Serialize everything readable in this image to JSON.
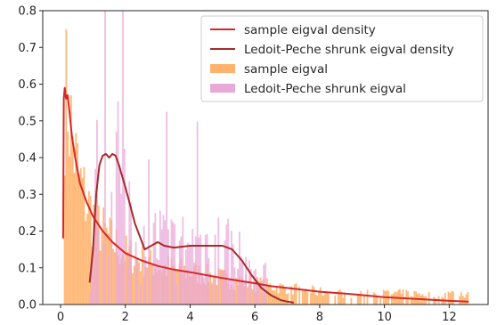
{
  "chart_data": {
    "type": "histogram+line",
    "title": "",
    "xlabel": "",
    "ylabel": "",
    "xlim": [
      -0.55,
      13.2
    ],
    "ylim": [
      0,
      0.8
    ],
    "x_ticks": [
      0,
      2,
      4,
      6,
      8,
      10,
      12
    ],
    "y_ticks": [
      0.0,
      0.1,
      0.2,
      0.3,
      0.4,
      0.5,
      0.6,
      0.7,
      0.8
    ],
    "legend_position": "top-right",
    "grid": false,
    "series": [
      {
        "name": "sample eigval density",
        "kind": "line",
        "color": "#d62728",
        "x": [
          0.08,
          0.1,
          0.13,
          0.17,
          0.22,
          0.28,
          0.35,
          0.45,
          0.6,
          0.8,
          1.0,
          1.3,
          1.6,
          2.0,
          2.5,
          3.0,
          3.5,
          4.0,
          4.5,
          5.0,
          5.5,
          6.0,
          6.5,
          7.0,
          8.0,
          9.0,
          10.0,
          11.0,
          12.0,
          12.6
        ],
        "y": [
          0.18,
          0.56,
          0.59,
          0.56,
          0.57,
          0.52,
          0.46,
          0.4,
          0.33,
          0.28,
          0.24,
          0.2,
          0.17,
          0.14,
          0.12,
          0.105,
          0.095,
          0.088,
          0.08,
          0.072,
          0.065,
          0.058,
          0.05,
          0.045,
          0.035,
          0.028,
          0.02,
          0.015,
          0.01,
          0.008
        ]
      },
      {
        "name": "Ledoit-Peche shrunk eigval density",
        "kind": "line",
        "color": "#a52a2a",
        "x": [
          0.9,
          1.0,
          1.1,
          1.2,
          1.3,
          1.4,
          1.5,
          1.6,
          1.7,
          1.8,
          2.0,
          2.3,
          2.6,
          2.8,
          3.0,
          3.2,
          3.5,
          4.0,
          4.5,
          5.0,
          5.3,
          5.6,
          5.9,
          6.2,
          6.5,
          6.8,
          7.0,
          7.2
        ],
        "y": [
          0.06,
          0.15,
          0.3,
          0.38,
          0.405,
          0.41,
          0.4,
          0.41,
          0.405,
          0.38,
          0.32,
          0.22,
          0.15,
          0.16,
          0.17,
          0.16,
          0.155,
          0.16,
          0.16,
          0.16,
          0.15,
          0.12,
          0.08,
          0.045,
          0.025,
          0.012,
          0.008,
          0.005
        ]
      },
      {
        "name": "sample eigval",
        "kind": "histogram",
        "color": "#ffb26b",
        "bin_width": 0.05,
        "x_range": [
          0.1,
          12.6
        ],
        "density_profile": "sample_decay"
      },
      {
        "name": "Ledoit-Peche shrunk eigval",
        "kind": "histogram",
        "color": "#e9a9d8",
        "bin_width": 0.05,
        "x_range": [
          0.9,
          6.3
        ],
        "density_profile": "shrunk_spiky"
      }
    ]
  }
}
